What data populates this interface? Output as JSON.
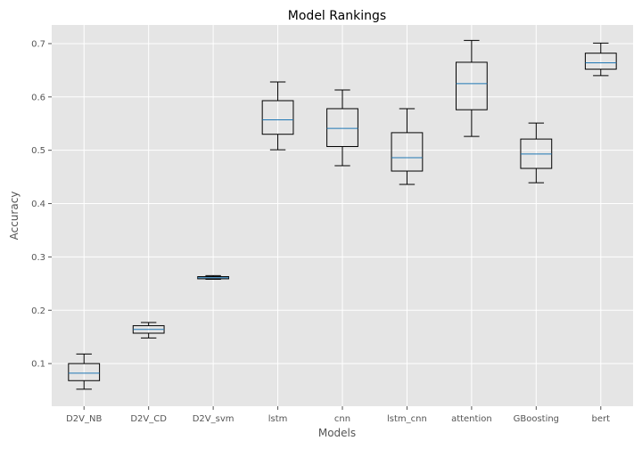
{
  "chart_data": {
    "type": "box",
    "title": "Model Rankings",
    "xlabel": "Models",
    "ylabel": "Accuracy",
    "ylim": [
      0.02,
      0.735
    ],
    "yticks": [
      0.1,
      0.2,
      0.3,
      0.4,
      0.5,
      0.6,
      0.7
    ],
    "ytick_labels": [
      "0.1",
      "0.2",
      "0.3",
      "0.4",
      "0.5",
      "0.6",
      "0.7"
    ],
    "grid": true,
    "colors": {
      "background": "#E5E5E5",
      "grid": "#FFFFFF",
      "box": "#000000",
      "median": "#1F77B4"
    },
    "categories": [
      "D2V_NB",
      "D2V_CD",
      "D2V_svm",
      "lstm",
      "cnn",
      "lstm_cnn",
      "attention",
      "GBoosting",
      "bert"
    ],
    "boxes": [
      {
        "min": 0.052,
        "q1": 0.068,
        "median": 0.082,
        "q3": 0.1,
        "max": 0.118
      },
      {
        "min": 0.148,
        "q1": 0.157,
        "median": 0.164,
        "q3": 0.171,
        "max": 0.177
      },
      {
        "min": 0.258,
        "q1": 0.259,
        "median": 0.261,
        "q3": 0.263,
        "max": 0.265
      },
      {
        "min": 0.501,
        "q1": 0.53,
        "median": 0.557,
        "q3": 0.593,
        "max": 0.628
      },
      {
        "min": 0.471,
        "q1": 0.507,
        "median": 0.541,
        "q3": 0.578,
        "max": 0.613
      },
      {
        "min": 0.436,
        "q1": 0.461,
        "median": 0.486,
        "q3": 0.533,
        "max": 0.578
      },
      {
        "min": 0.526,
        "q1": 0.576,
        "median": 0.625,
        "q3": 0.665,
        "max": 0.706
      },
      {
        "min": 0.439,
        "q1": 0.466,
        "median": 0.493,
        "q3": 0.521,
        "max": 0.551
      },
      {
        "min": 0.64,
        "q1": 0.652,
        "median": 0.664,
        "q3": 0.682,
        "max": 0.701
      }
    ]
  }
}
